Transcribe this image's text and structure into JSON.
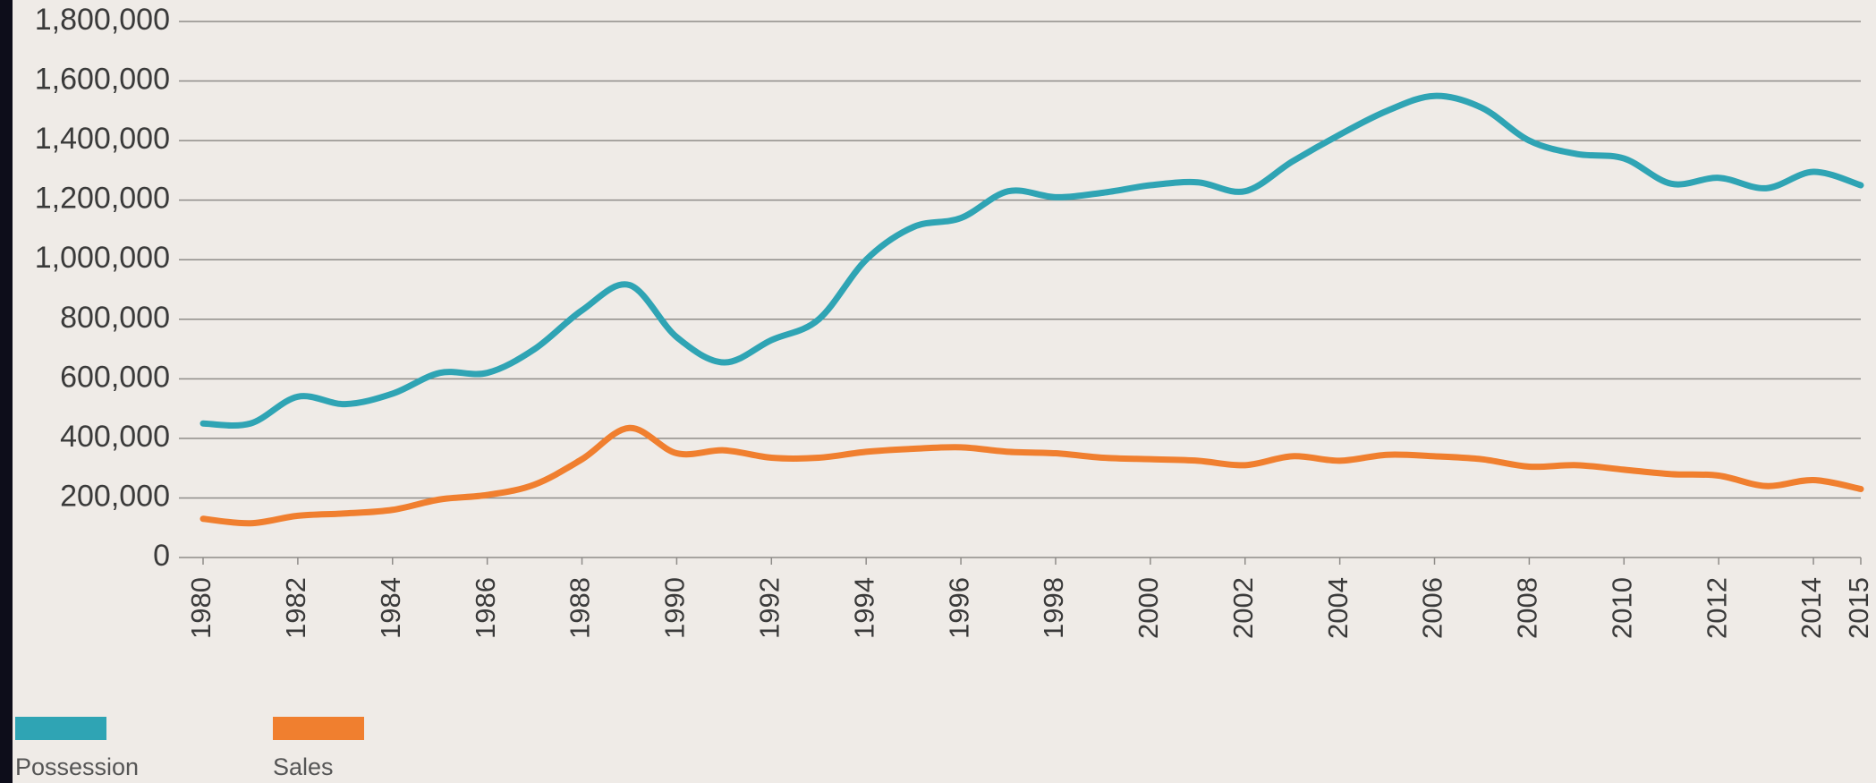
{
  "chart_data": {
    "type": "line",
    "x": [
      1980,
      1981,
      1982,
      1983,
      1984,
      1985,
      1986,
      1987,
      1988,
      1989,
      1990,
      1991,
      1992,
      1993,
      1994,
      1995,
      1996,
      1997,
      1998,
      1999,
      2000,
      2001,
      2002,
      2003,
      2004,
      2005,
      2006,
      2007,
      2008,
      2009,
      2010,
      2011,
      2012,
      2013,
      2014,
      2015
    ],
    "series": [
      {
        "name": "Possession",
        "color": "#2fa4b4",
        "values": [
          450000,
          450000,
          540000,
          515000,
          550000,
          620000,
          620000,
          700000,
          830000,
          915000,
          740000,
          655000,
          730000,
          800000,
          1000000,
          1110000,
          1140000,
          1230000,
          1210000,
          1225000,
          1250000,
          1260000,
          1230000,
          1330000,
          1420000,
          1500000,
          1550000,
          1510000,
          1400000,
          1355000,
          1340000,
          1255000,
          1275000,
          1240000,
          1295000,
          1250000
        ]
      },
      {
        "name": "Sales",
        "color": "#f07f2f",
        "values": [
          130000,
          115000,
          140000,
          148000,
          160000,
          195000,
          210000,
          245000,
          330000,
          435000,
          350000,
          360000,
          335000,
          335000,
          355000,
          365000,
          370000,
          355000,
          350000,
          335000,
          330000,
          325000,
          310000,
          340000,
          325000,
          345000,
          340000,
          330000,
          305000,
          310000,
          295000,
          280000,
          275000,
          240000,
          260000,
          230000
        ]
      }
    ],
    "xlim": [
      1980,
      2015
    ],
    "xticks": [
      1980,
      1982,
      1984,
      1986,
      1988,
      1990,
      1992,
      1994,
      1996,
      1998,
      2000,
      2002,
      2004,
      2006,
      2008,
      2010,
      2012,
      2014,
      2015
    ],
    "ylim": [
      0,
      1800000
    ],
    "yticks": [
      0,
      {
        "value": 200000,
        "label": "200,000"
      },
      {
        "value": 400000,
        "label": "400,000"
      },
      {
        "value": 600000,
        "label": "600,000"
      },
      {
        "value": 800000,
        "label": "800,000"
      },
      {
        "value": 1000000,
        "label": "1,000,000"
      },
      {
        "value": 1200000,
        "label": "1,200,000"
      },
      {
        "value": 1400000,
        "label": "1,400,000"
      },
      {
        "value": 1600000,
        "label": "1,600,000"
      },
      {
        "value": 1800000,
        "label": "1,800,000"
      }
    ],
    "grid": true
  }
}
